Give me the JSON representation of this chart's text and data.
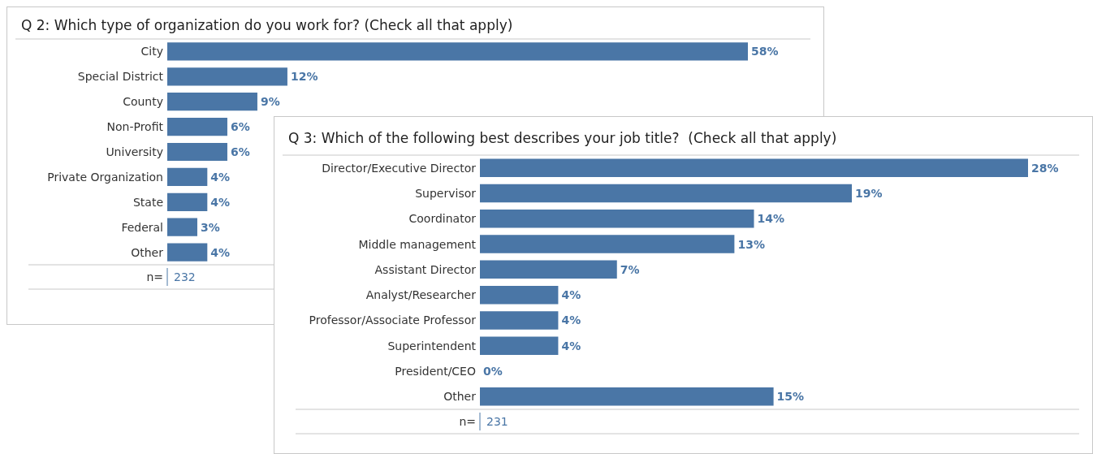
{
  "chart_data": [
    {
      "type": "bar",
      "orientation": "horizontal",
      "title": "Q 2: Which type of organization do you work for? (Check all that apply)",
      "categories": [
        "City",
        "Special District",
        "County",
        "Non-Profit",
        "University",
        "Private Organization",
        "State",
        "Federal",
        "Other"
      ],
      "values": [
        58,
        12,
        9,
        6,
        6,
        4,
        4,
        3,
        4
      ],
      "value_labels": [
        "58%",
        "12%",
        "9%",
        "6%",
        "6%",
        "4%",
        "4%",
        "3%",
        "4%"
      ],
      "color": "#4a76a6",
      "annotations": [
        "n=",
        "232"
      ]
    },
    {
      "type": "bar",
      "orientation": "horizontal",
      "title": "Q 3: Which of the following best describes your job title?  (Check all that apply)",
      "categories": [
        "Director/Executive Director",
        "Supervisor",
        "Coordinator",
        "Middle management",
        "Assistant Director",
        "Analyst/Researcher",
        "Professor/Associate Professor",
        "Superintendent",
        "President/CEO",
        "Other"
      ],
      "values": [
        28,
        19,
        14,
        13,
        7,
        4,
        4,
        4,
        0,
        15
      ],
      "value_labels": [
        "28%",
        "19%",
        "14%",
        "13%",
        "7%",
        "4%",
        "4%",
        "4%",
        "0%",
        "15%"
      ],
      "color": "#4a76a6",
      "annotations": [
        "n=",
        "231"
      ]
    }
  ]
}
